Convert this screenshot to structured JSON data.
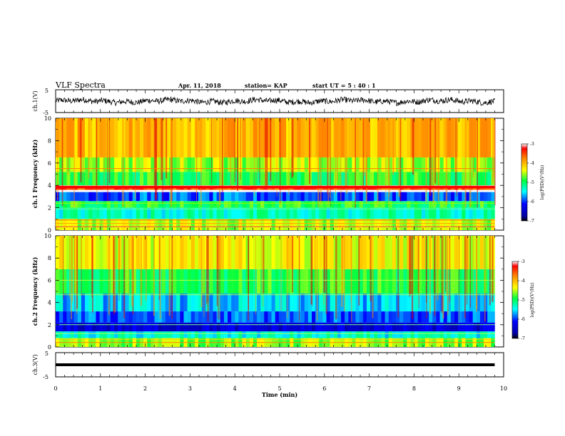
{
  "header": {
    "title": "VLF Spectra",
    "date": "Apr. 11, 2018",
    "station": "station= KAP",
    "start_ut": "start  UT =  5 : 40 : 1"
  },
  "chart_data": [
    {
      "type": "line",
      "panel": "ch1-waveform",
      "ylabel": "ch.1(V)",
      "x_range": [
        0,
        10
      ],
      "ylim": [
        -5,
        5
      ],
      "yticks": [
        "5",
        "-5"
      ],
      "signal": "noisy trace around 0 V, amplitude about ±1.5 V, spanning 0 to 9.8 min",
      "color": "#000000"
    },
    {
      "type": "heatmap",
      "panel": "ch1-spectrogram",
      "ylabel": "ch.1 Frequency (kHz)",
      "x_range": [
        0,
        9.8
      ],
      "ylim": [
        0,
        10
      ],
      "yticks": [
        "0",
        "2",
        "4",
        "6",
        "8",
        "10"
      ],
      "colorbar": {
        "label": "log(PSD)(V²/Hz)",
        "range": [
          -7,
          -3
        ],
        "ticks": [
          "-3",
          "-4",
          "-5",
          "-6",
          "-7"
        ]
      },
      "bands_khz": [
        {
          "from": 0,
          "to": 1.0,
          "level": "mixed yellow-green with orange lines"
        },
        {
          "from": 1.0,
          "to": 2.0,
          "level": "cyan / light blue"
        },
        {
          "from": 2.0,
          "to": 2.6,
          "level": "green"
        },
        {
          "from": 2.6,
          "to": 3.4,
          "level": "blue"
        },
        {
          "from": 3.6,
          "to": 3.9,
          "level": "red line"
        },
        {
          "from": 4.0,
          "to": 5.2,
          "level": "green"
        },
        {
          "from": 5.2,
          "to": 6.5,
          "level": "yellow-green"
        },
        {
          "from": 6.5,
          "to": 10.0,
          "level": "yellow-orange with red striations"
        }
      ]
    },
    {
      "type": "heatmap",
      "panel": "ch2-spectrogram",
      "ylabel": "ch.2 Frequency (kHz)",
      "x_range": [
        0,
        9.8
      ],
      "ylim": [
        0,
        10
      ],
      "yticks": [
        "0",
        "2",
        "4",
        "6",
        "8",
        "10"
      ],
      "colorbar": {
        "label": "log(PSD)(V²/Hz)",
        "range": [
          -7,
          -3
        ],
        "ticks": [
          "-3",
          "-4",
          "-5",
          "-6",
          "-7"
        ]
      },
      "bands_khz": [
        {
          "from": 0,
          "to": 0.8,
          "level": "mixed green-yellow"
        },
        {
          "from": 0.8,
          "to": 1.4,
          "level": "cyan"
        },
        {
          "from": 1.4,
          "to": 2.2,
          "level": "dark blue"
        },
        {
          "from": 2.2,
          "to": 3.2,
          "level": "blue"
        },
        {
          "from": 3.2,
          "to": 4.8,
          "level": "cyan-blue"
        },
        {
          "from": 4.8,
          "to": 7.0,
          "level": "green"
        },
        {
          "from": 7.0,
          "to": 10.0,
          "level": "yellow-green with orange striations"
        }
      ]
    },
    {
      "type": "line",
      "panel": "ch3-waveform",
      "ylabel": "ch.3(V)",
      "x_range": [
        0,
        10
      ],
      "ylim": [
        -5,
        5
      ],
      "yticks": [
        "5",
        "-5"
      ],
      "signal": "flat at about 0 V",
      "color": "#000000"
    }
  ],
  "x_axis": {
    "label": "Time  (min)",
    "ticks": [
      "0",
      "1",
      "2",
      "3",
      "4",
      "5",
      "6",
      "7",
      "8",
      "9",
      "10"
    ],
    "range": [
      0,
      10
    ]
  }
}
